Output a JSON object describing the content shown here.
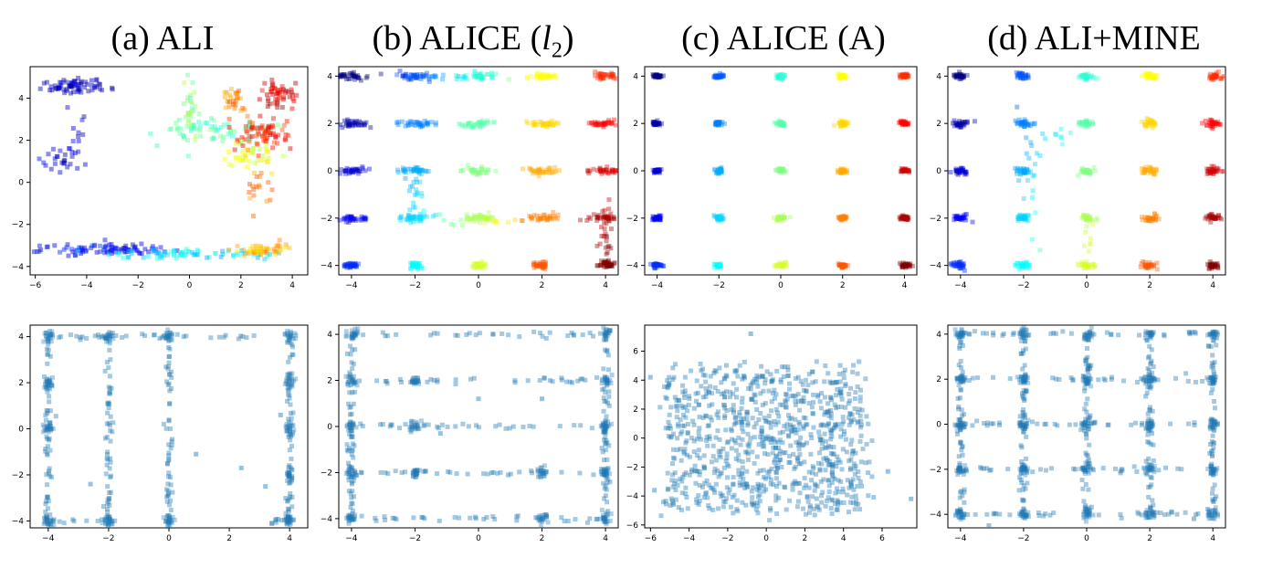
{
  "titles": [
    {
      "prefix": "(a) ALI",
      "l2": false
    },
    {
      "prefix": "(b) ALICE (",
      "l2": true,
      "var": "l",
      "sub": "2",
      "suffix": ")"
    },
    {
      "prefix": "(c) ALICE (A)",
      "l2": false
    },
    {
      "prefix": "(d) ALI+MINE",
      "l2": false
    }
  ],
  "colors": {
    "scatter_blue": "#1f77b4",
    "colormap": "jet"
  },
  "chart_data": [
    {
      "type": "scatter",
      "panel": "a-top",
      "title": "(a) ALI",
      "xlim": [
        -6.2,
        4.6
      ],
      "ylim": [
        -4.4,
        5.5
      ],
      "xticks": [
        -6,
        -4,
        -2,
        0,
        2,
        4
      ],
      "yticks": [
        -4,
        -2,
        0,
        2,
        4
      ],
      "marker": "square",
      "colored_by_mode": true,
      "clusters": [
        {
          "x": -4.5,
          "y": 4.6,
          "n": 70,
          "sx": 0.7,
          "sy": 0.2,
          "c": 0.05
        },
        {
          "x": -5.0,
          "y": 1.0,
          "n": 25,
          "sx": 0.4,
          "sy": 0.3,
          "c": 0.08
        },
        {
          "x": -4.4,
          "y": 2.5,
          "n": 12,
          "sx": 0.2,
          "sy": 0.8,
          "c": 0.1
        },
        {
          "x": -3.0,
          "y": -3.2,
          "n": 90,
          "sx": 1.4,
          "sy": 0.12,
          "c": 0.12
        },
        {
          "x": 0.0,
          "y": -3.4,
          "n": 70,
          "sx": 1.3,
          "sy": 0.1,
          "c": 0.35
        },
        {
          "x": 2.8,
          "y": -3.2,
          "n": 50,
          "sx": 0.6,
          "sy": 0.15,
          "c": 0.7
        },
        {
          "x": 0.0,
          "y": 3.4,
          "n": 30,
          "sx": 0.15,
          "sy": 0.9,
          "c": 0.5
        },
        {
          "x": 1.0,
          "y": 2.5,
          "n": 60,
          "sx": 1.0,
          "sy": 0.3,
          "c": 0.45
        },
        {
          "x": 1.7,
          "y": 3.7,
          "n": 30,
          "sx": 0.2,
          "sy": 0.5,
          "c": 0.75
        },
        {
          "x": 3.4,
          "y": 4.2,
          "n": 50,
          "sx": 0.3,
          "sy": 0.35,
          "c": 0.9
        },
        {
          "x": 2.8,
          "y": 2.4,
          "n": 70,
          "sx": 0.6,
          "sy": 0.4,
          "c": 0.85
        },
        {
          "x": 2.5,
          "y": 1.3,
          "n": 40,
          "sx": 0.5,
          "sy": 0.3,
          "c": 0.6
        },
        {
          "x": 2.6,
          "y": -0.5,
          "n": 18,
          "sx": 0.3,
          "sy": 0.4,
          "c": 0.75
        }
      ]
    },
    {
      "type": "scatter",
      "panel": "b-top",
      "title": "ALICE (l2)",
      "xlim": [
        -4.4,
        4.4
      ],
      "ylim": [
        -4.4,
        4.4
      ],
      "xticks": [
        -4,
        -2,
        0,
        2,
        4
      ],
      "yticks": [
        -4,
        -2,
        0,
        2,
        4
      ],
      "marker": "square",
      "colored_by_mode": true,
      "grid": [
        -4,
        -2,
        0,
        2,
        4
      ],
      "spread": 0.12,
      "n_per_mode": 35,
      "streaks": [
        {
          "x": -2,
          "y": -1.0,
          "n": 25,
          "sx": 0.15,
          "sy": 0.6
        },
        {
          "x": 4,
          "y": -2.9,
          "n": 30,
          "sx": 0.1,
          "sy": 0.7
        },
        {
          "x": -1.0,
          "y": 4.0,
          "n": 25,
          "sx": 0.9,
          "sy": 0.08
        },
        {
          "x": 0.0,
          "y": -2.1,
          "n": 20,
          "sx": 0.8,
          "sy": 0.1
        }
      ]
    },
    {
      "type": "scatter",
      "panel": "c-top",
      "title": "(c) ALICE (A)",
      "xlim": [
        -4.4,
        4.4
      ],
      "ylim": [
        -4.4,
        4.4
      ],
      "xticks": [
        -4,
        -2,
        0,
        2,
        4
      ],
      "yticks": [
        -4,
        -2,
        0,
        2,
        4
      ],
      "marker": "square",
      "colored_by_mode": true,
      "grid": [
        -4,
        -2,
        0,
        2,
        4
      ],
      "spread": 0.08,
      "n_per_mode": 30,
      "streaks": []
    },
    {
      "type": "scatter",
      "panel": "d-top",
      "title": "(d) ALI+MINE",
      "xlim": [
        -4.4,
        4.4
      ],
      "ylim": [
        -4.4,
        4.4
      ],
      "xticks": [
        -4,
        -2,
        0,
        2,
        4
      ],
      "yticks": [
        -4,
        -2,
        0,
        2,
        4
      ],
      "marker": "square",
      "colored_by_mode": true,
      "grid": [
        -4,
        -2,
        0,
        2,
        4
      ],
      "spread": 0.12,
      "n_per_mode": 30,
      "streaks": [
        {
          "x": -1.8,
          "y": -0.3,
          "n": 20,
          "sx": 0.15,
          "sy": 1.2
        },
        {
          "x": -1.0,
          "y": 1.5,
          "n": 10,
          "sx": 0.5,
          "sy": 0.2
        },
        {
          "x": 0.0,
          "y": -2.9,
          "n": 8,
          "sx": 0.1,
          "sy": 0.4
        }
      ]
    },
    {
      "type": "scatter",
      "panel": "a-bottom",
      "xlim": [
        -4.6,
        4.6
      ],
      "ylim": [
        -4.3,
        4.5
      ],
      "xticks": [
        -4,
        -2,
        0,
        2,
        4
      ],
      "yticks": [
        -4,
        -2,
        0,
        2,
        4
      ],
      "marker": "square",
      "color": "#1f77b4",
      "lines": {
        "vertical_x": [
          -4,
          -2,
          0,
          4
        ],
        "horizontal_y": [
          4
        ],
        "partial_h": [
          {
            "y": -4,
            "x0": -4,
            "x1": -1.6
          },
          {
            "y": -4,
            "x0": 3.3,
            "x1": 4
          }
        ]
      },
      "blobs": [
        [
          -4,
          4
        ],
        [
          -2,
          4
        ],
        [
          0,
          4
        ],
        [
          4,
          4
        ],
        [
          -4,
          0
        ],
        [
          4,
          0
        ],
        [
          4,
          -2
        ],
        [
          -4,
          -4
        ],
        [
          -2,
          -4
        ],
        [
          0,
          -4
        ],
        [
          4,
          -4
        ],
        [
          -4,
          2
        ],
        [
          4,
          2
        ]
      ],
      "extra": [
        [
          3.7,
          0.6
        ],
        [
          0.9,
          -1.1
        ],
        [
          2.4,
          -1.7
        ],
        [
          3.2,
          -2.5
        ],
        [
          -2.6,
          -2.4
        ]
      ]
    },
    {
      "type": "scatter",
      "panel": "b-bottom",
      "xlim": [
        -4.4,
        4.4
      ],
      "ylim": [
        -4.4,
        4.4
      ],
      "xticks": [
        -4,
        -2,
        0,
        2,
        4
      ],
      "yticks": [
        -4,
        -2,
        0,
        2,
        4
      ],
      "marker": "square",
      "color": "#1f77b4",
      "lines": {
        "vertical_x": [
          -4,
          4
        ],
        "horizontal_y": [
          4,
          2,
          0,
          -2,
          -4
        ]
      },
      "blobs": [
        [
          -4,
          4
        ],
        [
          -4,
          2
        ],
        [
          -4,
          0
        ],
        [
          -4,
          -2
        ],
        [
          -4,
          -4
        ],
        [
          4,
          4
        ],
        [
          4,
          2
        ],
        [
          4,
          0
        ],
        [
          4,
          -2
        ],
        [
          4,
          -4
        ],
        [
          -2,
          -2
        ],
        [
          -2,
          2
        ],
        [
          -2,
          0
        ],
        [
          2,
          -4
        ],
        [
          2,
          -2
        ]
      ],
      "extra": [
        [
          2,
          1.2
        ],
        [
          -1.2,
          -0.3
        ],
        [
          0,
          1.2
        ]
      ]
    },
    {
      "type": "scatter",
      "panel": "c-bottom",
      "xlim": [
        -6.3,
        7.8
      ],
      "ylim": [
        -6.2,
        7.8
      ],
      "xticks": [
        -6,
        -4,
        -2,
        0,
        2,
        4,
        6
      ],
      "yticks": [
        -6,
        -4,
        -2,
        0,
        2,
        4,
        6
      ],
      "marker": "square",
      "color": "#1f77b4",
      "uniform": {
        "x0": -5.2,
        "x1": 5.2,
        "y0": -5.0,
        "y1": 4.8,
        "n": 900
      },
      "extra": [
        [
          -6,
          4.2
        ],
        [
          -0.8,
          7.2
        ],
        [
          7.5,
          -4.2
        ],
        [
          6.3,
          -2.3
        ],
        [
          -5.8,
          -3.6
        ]
      ]
    },
    {
      "type": "scatter",
      "panel": "d-bottom",
      "xlim": [
        -4.4,
        4.4
      ],
      "ylim": [
        -4.6,
        4.4
      ],
      "xticks": [
        -4,
        -2,
        0,
        2,
        4
      ],
      "yticks": [
        -4,
        -2,
        0,
        2,
        4
      ],
      "marker": "square",
      "color": "#1f77b4",
      "lines": {
        "vertical_x": [
          -4,
          -2,
          0,
          2,
          4
        ],
        "horizontal_y": [
          4,
          2,
          0,
          -2,
          -4
        ]
      },
      "blobs": [
        [
          -4,
          4
        ],
        [
          -2,
          4
        ],
        [
          0,
          4
        ],
        [
          2,
          4
        ],
        [
          4,
          4
        ],
        [
          -4,
          2
        ],
        [
          -2,
          2
        ],
        [
          0,
          2
        ],
        [
          2,
          2
        ],
        [
          4,
          2
        ],
        [
          -4,
          0
        ],
        [
          -2,
          0
        ],
        [
          0,
          0
        ],
        [
          2,
          0
        ],
        [
          4,
          0
        ],
        [
          -4,
          -2
        ],
        [
          -2,
          -2
        ],
        [
          0,
          -2
        ],
        [
          2,
          -2
        ],
        [
          4,
          -2
        ],
        [
          -4,
          -4
        ],
        [
          -2,
          -4
        ],
        [
          0,
          -4
        ],
        [
          2,
          -4
        ],
        [
          4,
          -4
        ]
      ],
      "extra": [
        [
          -3.1,
          -4.5
        ],
        [
          3.4,
          -4.2
        ]
      ]
    }
  ]
}
